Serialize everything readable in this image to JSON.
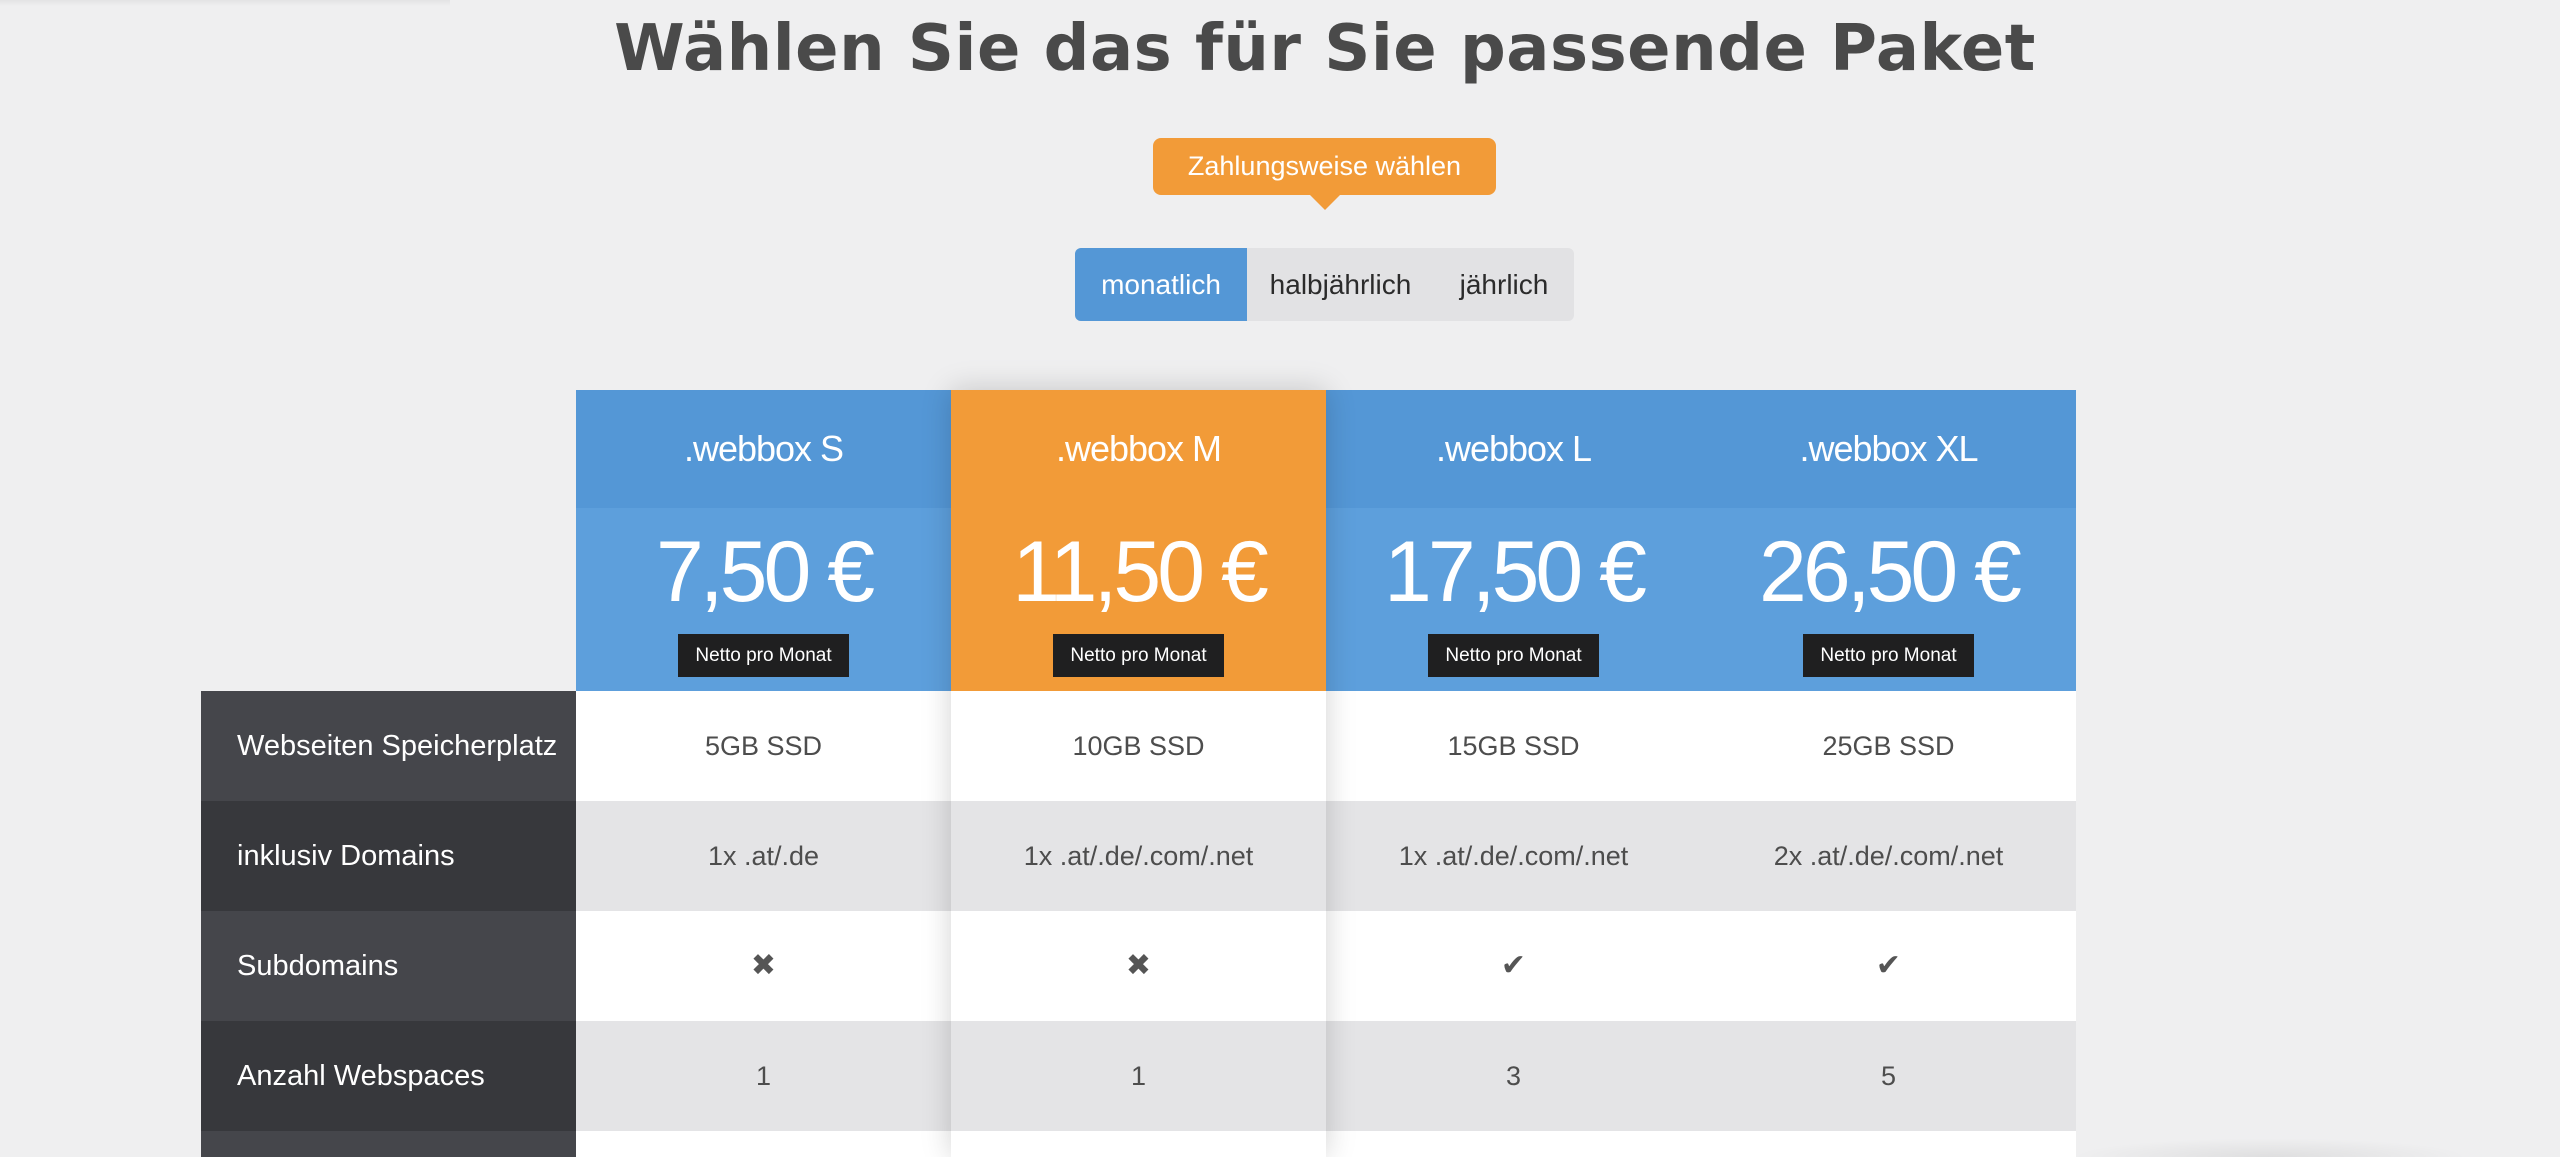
{
  "title": "Wählen Sie das für Sie passende Paket",
  "payment": {
    "callout": "Zahlungsweise wählen",
    "options": [
      "monatlich",
      "halbjährlich",
      "jährlich"
    ],
    "selected": "monatlich"
  },
  "colors": {
    "blue": "#5497d6",
    "orange": "#f29b38",
    "dark": "#37383c"
  },
  "features": [
    "Webseiten Speicherplatz",
    "inklusiv Domains",
    "Subdomains",
    "Anzahl Webspaces"
  ],
  "plans": [
    {
      "name": ".webbox S",
      "price": "7,50 €",
      "note": "Netto pro Monat",
      "values": [
        "5GB SSD",
        "1x .at/.de",
        "✖",
        "1"
      ]
    },
    {
      "name": ".webbox M",
      "price": "11,50 €",
      "note": "Netto pro Monat",
      "values": [
        "10GB SSD",
        "1x .at/.de/.com/.net",
        "✖",
        "1"
      ]
    },
    {
      "name": ".webbox L",
      "price": "17,50 €",
      "note": "Netto pro Monat",
      "values": [
        "15GB SSD",
        "1x .at/.de/.com/.net",
        "✔",
        "3"
      ]
    },
    {
      "name": ".webbox XL",
      "price": "26,50 €",
      "note": "Netto pro Monat",
      "values": [
        "25GB SSD",
        "2x .at/.de/.com/.net",
        "✔",
        "5"
      ]
    }
  ]
}
